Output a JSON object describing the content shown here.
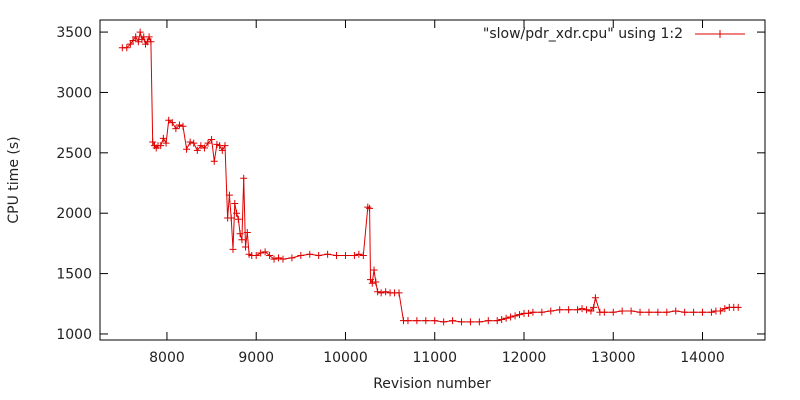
{
  "chart_data": {
    "type": "line",
    "title": "",
    "xlabel": "Revision number",
    "ylabel": "CPU time (s)",
    "xlim": [
      7250,
      14700
    ],
    "ylim": [
      950,
      3600
    ],
    "xticks": [
      8000,
      9000,
      10000,
      11000,
      12000,
      13000,
      14000
    ],
    "yticks": [
      1000,
      1500,
      2000,
      2500,
      3000,
      3500
    ],
    "grid": false,
    "legend_position": "top-right",
    "color": "#dd0000",
    "series": [
      {
        "name": "\"slow/pdr_xdr.cpu\" using 1:2",
        "marker": "plus",
        "x": [
          7500,
          7550,
          7590,
          7620,
          7650,
          7680,
          7700,
          7720,
          7740,
          7760,
          7780,
          7800,
          7820,
          7840,
          7860,
          7880,
          7900,
          7930,
          7960,
          7990,
          8020,
          8060,
          8100,
          8140,
          8180,
          8220,
          8260,
          8300,
          8340,
          8380,
          8420,
          8460,
          8500,
          8530,
          8560,
          8590,
          8620,
          8650,
          8680,
          8700,
          8720,
          8740,
          8760,
          8780,
          8800,
          8820,
          8840,
          8860,
          8880,
          8900,
          8920,
          8950,
          9000,
          9050,
          9100,
          9150,
          9200,
          9250,
          9300,
          9400,
          9500,
          9600,
          9700,
          9800,
          9900,
          10000,
          10100,
          10150,
          10200,
          10250,
          10270,
          10280,
          10300,
          10320,
          10340,
          10360,
          10400,
          10450,
          10500,
          10550,
          10600,
          10650,
          10700,
          10800,
          10900,
          11000,
          11100,
          11200,
          11300,
          11400,
          11500,
          11600,
          11700,
          11750,
          11800,
          11850,
          11900,
          11950,
          12000,
          12050,
          12100,
          12200,
          12300,
          12400,
          12500,
          12600,
          12650,
          12700,
          12750,
          12780,
          12800,
          12850,
          12900,
          13000,
          13100,
          13200,
          13300,
          13400,
          13500,
          13600,
          13700,
          13800,
          13900,
          14000,
          14100,
          14150,
          14200,
          14250,
          14300,
          14350,
          14400
        ],
        "y": [
          3370,
          3370,
          3400,
          3430,
          3460,
          3420,
          3500,
          3440,
          3460,
          3400,
          3420,
          3460,
          3420,
          2590,
          2560,
          2540,
          2560,
          2560,
          2620,
          2580,
          2770,
          2750,
          2700,
          2730,
          2720,
          2530,
          2590,
          2580,
          2520,
          2560,
          2540,
          2580,
          2610,
          2430,
          2570,
          2560,
          2520,
          2560,
          1960,
          2150,
          1960,
          1700,
          2080,
          2000,
          1950,
          1830,
          1780,
          2290,
          1720,
          1840,
          1660,
          1650,
          1650,
          1670,
          1680,
          1650,
          1620,
          1630,
          1620,
          1630,
          1650,
          1660,
          1650,
          1660,
          1650,
          1650,
          1650,
          1660,
          1650,
          2050,
          2040,
          1450,
          1420,
          1530,
          1430,
          1350,
          1340,
          1350,
          1340,
          1340,
          1340,
          1110,
          1110,
          1110,
          1110,
          1110,
          1100,
          1110,
          1100,
          1100,
          1100,
          1110,
          1110,
          1120,
          1130,
          1140,
          1150,
          1160,
          1170,
          1170,
          1180,
          1180,
          1190,
          1200,
          1200,
          1200,
          1210,
          1200,
          1190,
          1220,
          1300,
          1180,
          1180,
          1180,
          1190,
          1190,
          1180,
          1180,
          1180,
          1180,
          1190,
          1180,
          1180,
          1180,
          1180,
          1190,
          1190,
          1210,
          1220,
          1220,
          1220
        ]
      }
    ]
  }
}
